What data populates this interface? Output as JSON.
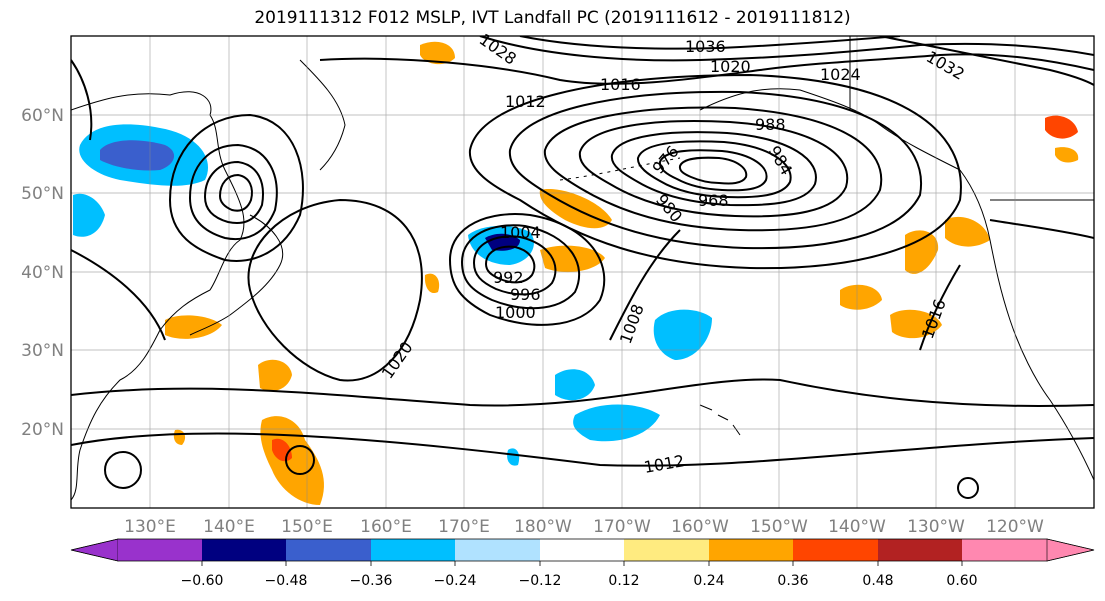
{
  "title": "2019111312 F012 MSLP, IVT Landfall PC (2019111612 - 2019111812)",
  "map": {
    "extent_lon": [
      120,
      250
    ],
    "extent_lat": [
      10,
      70
    ],
    "lon_ticks": [
      "130°E",
      "140°E",
      "150°E",
      "160°E",
      "170°E",
      "180°W",
      "170°W",
      "160°W",
      "150°W",
      "140°W",
      "130°W",
      "120°W"
    ],
    "lat_ticks": [
      "20°N",
      "30°N",
      "40°N",
      "50°N",
      "60°N"
    ],
    "grid": true
  },
  "mslp_contours": {
    "units": "hPa",
    "labels": [
      {
        "text": "1036"
      },
      {
        "text": "1032"
      },
      {
        "text": "1028"
      },
      {
        "text": "1024"
      },
      {
        "text": "1020"
      },
      {
        "text": "1016"
      },
      {
        "text": "1012"
      },
      {
        "text": "1008"
      },
      {
        "text": "1004"
      },
      {
        "text": "1000"
      },
      {
        "text": "996"
      },
      {
        "text": "992"
      },
      {
        "text": "988"
      },
      {
        "text": "984"
      },
      {
        "text": "980"
      },
      {
        "text": "976"
      },
      {
        "text": "968"
      },
      {
        "text": "1012"
      },
      {
        "text": "1020"
      },
      {
        "text": "1016"
      }
    ]
  },
  "colorbar": {
    "levels": [
      "−0.60",
      "−0.48",
      "−0.36",
      "−0.24",
      "−0.12",
      "0.12",
      "0.24",
      "0.36",
      "0.48",
      "0.60"
    ],
    "colors": [
      "#9932cc",
      "#000080",
      "#3a5fcd",
      "#00bfff",
      "#b0e2ff",
      "#ffffff",
      "#ffeb80",
      "#ffa500",
      "#ff4500",
      "#b22222",
      "#ff88b0"
    ]
  }
}
